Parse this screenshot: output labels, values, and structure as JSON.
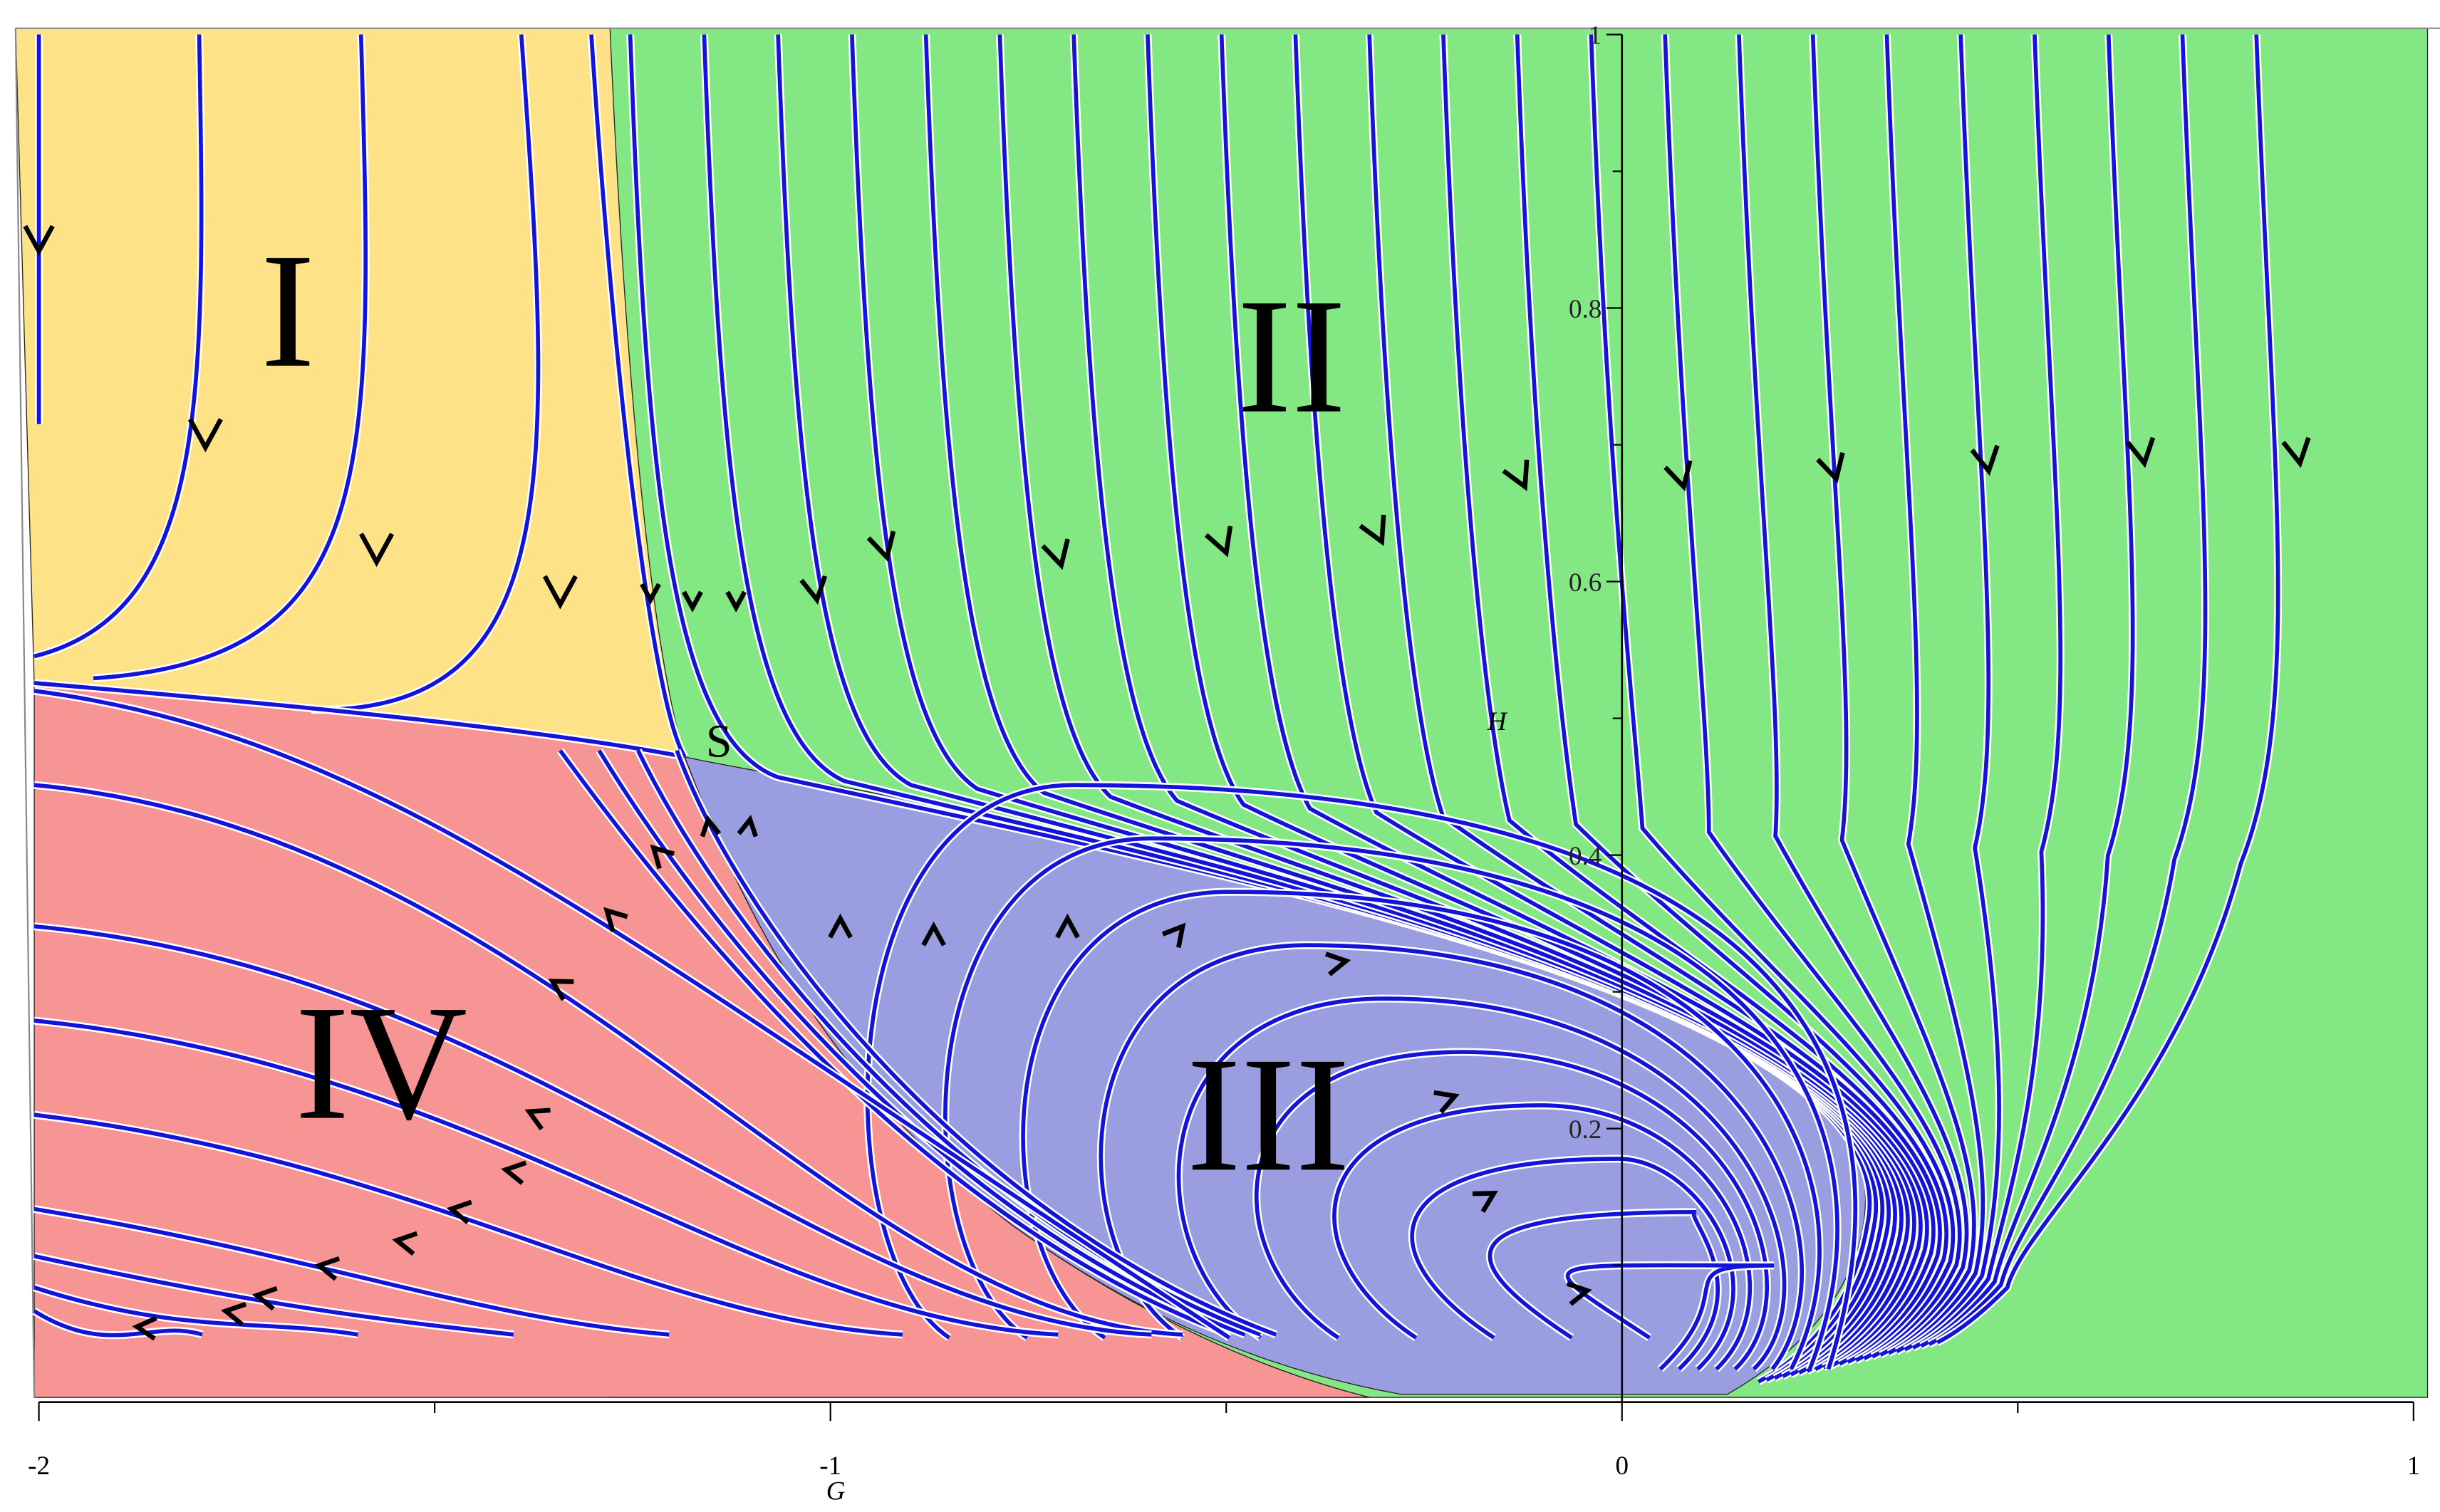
{
  "chart_data": {
    "type": "phase_portrait",
    "xlabel": "G",
    "ylabel": "H",
    "xlim": [
      -2,
      1
    ],
    "ylim": [
      0,
      1
    ],
    "xticks": [
      -2,
      -1,
      0,
      1
    ],
    "yticks": [
      0.2,
      0.4,
      0.6,
      0.8,
      1
    ],
    "stream_color": "#1414d8",
    "regions": [
      {
        "label": "I",
        "color": "#fde287"
      },
      {
        "label": "II",
        "color": "#83e783"
      },
      {
        "label": "III",
        "color": "#9a9de0"
      },
      {
        "label": "IV",
        "color": "#f79494"
      }
    ],
    "point_label": "S"
  }
}
